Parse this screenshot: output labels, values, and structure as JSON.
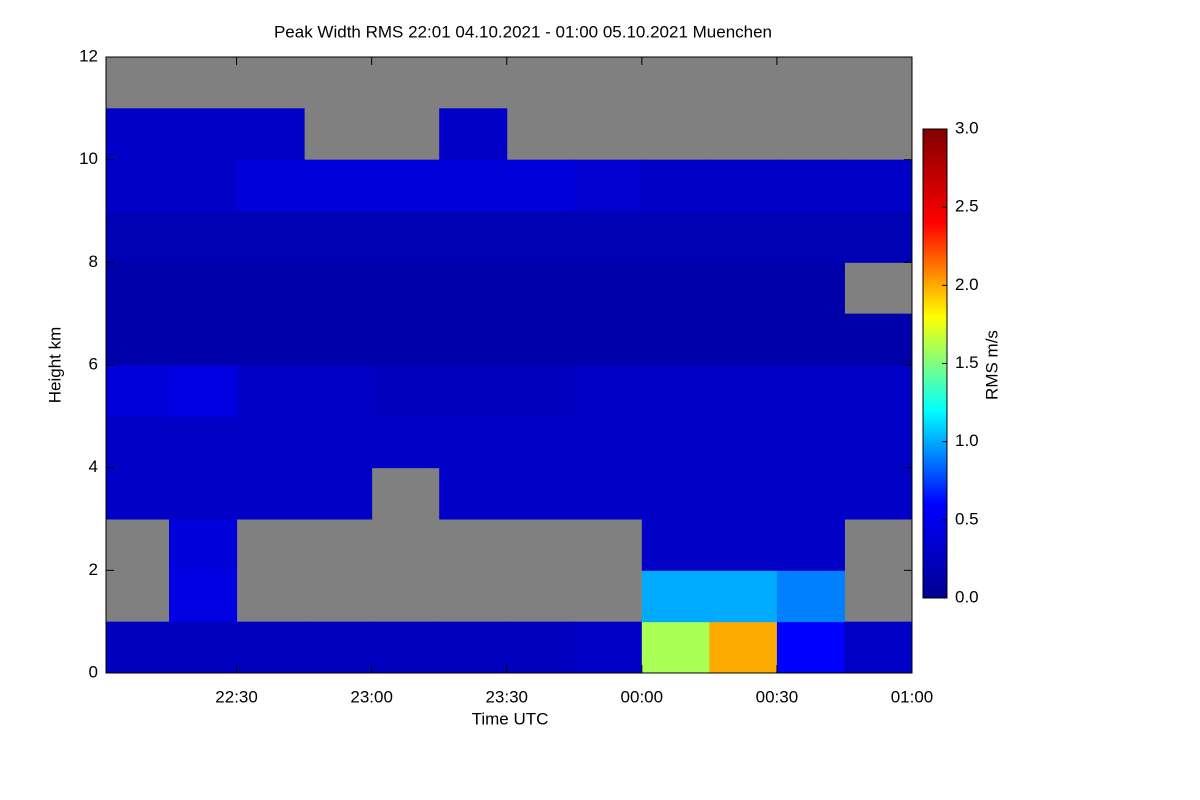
{
  "chart_data": {
    "type": "heatmap",
    "title": "Peak Width RMS   22:01 04.10.2021 - 01:00 05.10.2021 Muenchen",
    "xlabel": "Time UTC",
    "ylabel": "Height km",
    "colorbar_label": "RMS m/s",
    "missing_color": "#808080",
    "colormap": [
      "#00008f",
      "#0000ff",
      "#00ffff",
      "#ffff00",
      "#ff0000",
      "#800000"
    ],
    "xlim": [
      22.0167,
      25.0
    ],
    "xticks": [
      {
        "value": 22.5,
        "label": "22:30"
      },
      {
        "value": 23,
        "label": "23:00"
      },
      {
        "value": 23.5,
        "label": "23:30"
      },
      {
        "value": 24,
        "label": "00:00"
      },
      {
        "value": 24.5,
        "label": "00:30"
      },
      {
        "value": 25,
        "label": "01:00"
      }
    ],
    "ylim": [
      0,
      12
    ],
    "yticks": [
      0,
      2,
      4,
      6,
      8,
      10,
      12
    ],
    "clim": [
      0,
      3
    ],
    "cticks": [
      {
        "value": 0,
        "label": "0.0"
      },
      {
        "value": 0.5,
        "label": "0.5"
      },
      {
        "value": 1,
        "label": "1.0"
      },
      {
        "value": 1.5,
        "label": "1.5"
      },
      {
        "value": 2,
        "label": "2.0"
      },
      {
        "value": 2.5,
        "label": "2.5"
      },
      {
        "value": 3,
        "label": "3.0"
      }
    ],
    "x": [
      22.125,
      22.375,
      22.625,
      22.875,
      23.125,
      23.375,
      23.625,
      23.875,
      24.125,
      24.375,
      24.625,
      24.875
    ],
    "y": [
      0.5,
      1.5,
      2.5,
      3.5,
      4.5,
      5.5,
      6.5,
      7.5,
      8.5,
      9.5,
      10.5,
      11.5
    ],
    "z": [
      [
        0.25,
        0.25,
        0.25,
        0.25,
        0.25,
        0.25,
        0.25,
        0.3,
        1.6,
        2.0,
        0.6,
        0.3
      ],
      [
        null,
        0.45,
        null,
        null,
        null,
        null,
        null,
        null,
        1.0,
        1.0,
        0.9,
        null
      ],
      [
        null,
        0.4,
        null,
        null,
        null,
        null,
        null,
        null,
        0.3,
        0.3,
        0.3,
        null
      ],
      [
        0.3,
        0.3,
        0.3,
        0.3,
        null,
        0.3,
        0.3,
        0.3,
        0.3,
        0.3,
        0.3,
        0.3
      ],
      [
        0.3,
        0.3,
        0.3,
        0.3,
        0.3,
        0.3,
        0.3,
        0.3,
        0.3,
        0.3,
        0.3,
        0.3
      ],
      [
        0.4,
        0.45,
        0.3,
        0.3,
        0.25,
        0.25,
        0.25,
        0.3,
        0.3,
        0.3,
        0.3,
        0.3
      ],
      [
        0.15,
        0.15,
        0.15,
        0.15,
        0.15,
        0.15,
        0.15,
        0.15,
        0.15,
        0.15,
        0.15,
        0.15
      ],
      [
        0.15,
        0.15,
        0.15,
        0.15,
        0.15,
        0.15,
        0.15,
        0.15,
        0.15,
        0.15,
        0.15,
        null
      ],
      [
        0.2,
        0.2,
        0.2,
        0.2,
        0.2,
        0.2,
        0.2,
        0.2,
        0.2,
        0.2,
        0.2,
        0.2
      ],
      [
        0.3,
        0.3,
        0.4,
        0.4,
        0.4,
        0.4,
        0.4,
        0.35,
        0.3,
        0.3,
        0.3,
        0.3
      ],
      [
        0.3,
        0.3,
        0.3,
        null,
        null,
        0.3,
        null,
        null,
        null,
        null,
        null,
        null
      ],
      [
        null,
        null,
        null,
        null,
        null,
        null,
        null,
        null,
        null,
        null,
        null,
        null
      ]
    ]
  }
}
